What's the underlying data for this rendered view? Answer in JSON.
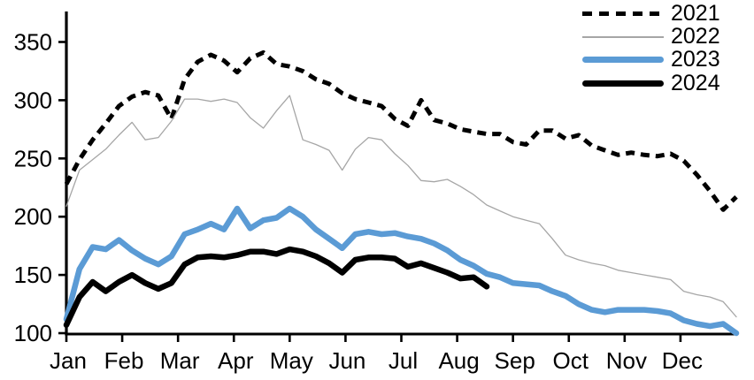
{
  "chart_data": {
    "type": "line",
    "title": "",
    "x_axis": {
      "labels": [
        "Jan",
        "Feb",
        "Mar",
        "Apr",
        "May",
        "Jun",
        "Jul",
        "Aug",
        "Sep",
        "Oct",
        "Nov",
        "Dec"
      ],
      "granularity": "weekly"
    },
    "y_axis": {
      "ticks": [
        100,
        150,
        200,
        250,
        300,
        350
      ],
      "range": [
        100,
        350
      ]
    },
    "grid": "off",
    "legend_position": "top-right",
    "axis_color": "#000000",
    "series": [
      {
        "name": "2021",
        "color": "#000000",
        "line_style": "dashed",
        "width": 5,
        "values": [
          228,
          249,
          266,
          280,
          295,
          303,
          307,
          304,
          284,
          318,
          333,
          339,
          334,
          324,
          336,
          341,
          331,
          329,
          325,
          318,
          314,
          306,
          301,
          298,
          295,
          284,
          278,
          300,
          283,
          280,
          275,
          273,
          271,
          271,
          264,
          262,
          274,
          274,
          267,
          270,
          261,
          257,
          253,
          255,
          253,
          252,
          254,
          248,
          236,
          222,
          206,
          217
        ]
      },
      {
        "name": "2022",
        "color": "#A6A6A6",
        "line_style": "solid",
        "width": 1.3,
        "values": [
          209,
          240,
          249,
          258,
          270,
          281,
          266,
          268,
          282,
          301,
          301,
          299,
          301,
          298,
          285,
          276,
          291,
          304,
          266,
          262,
          257,
          240,
          258,
          268,
          266,
          254,
          244,
          231,
          230,
          232,
          226,
          219,
          210,
          205,
          200,
          197,
          194,
          181,
          167,
          163,
          160,
          158,
          154,
          152,
          150,
          148,
          146,
          136,
          133,
          131,
          127,
          114
        ]
      },
      {
        "name": "2023",
        "color": "#5B9BD5",
        "line_style": "solid",
        "width": 6.5,
        "values": [
          112,
          155,
          174,
          172,
          180,
          171,
          164,
          159,
          166,
          185,
          189,
          194,
          189,
          207,
          190,
          197,
          199,
          207,
          200,
          189,
          181,
          173,
          185,
          187,
          185,
          186,
          183,
          181,
          177,
          171,
          163,
          158,
          151,
          148,
          143,
          142,
          141,
          136,
          132,
          125,
          120,
          118,
          120,
          120,
          120,
          119,
          117,
          111,
          108,
          106,
          108,
          100
        ]
      },
      {
        "name": "2024",
        "color": "#000000",
        "line_style": "solid",
        "width": 6.5,
        "values": [
          107,
          131,
          144,
          136,
          144,
          150,
          143,
          138,
          143,
          159,
          165,
          166,
          165,
          167,
          170,
          170,
          168,
          172,
          170,
          166,
          160,
          152,
          163,
          165,
          165,
          164,
          157,
          160,
          156,
          152,
          147,
          148,
          140
        ]
      }
    ]
  }
}
